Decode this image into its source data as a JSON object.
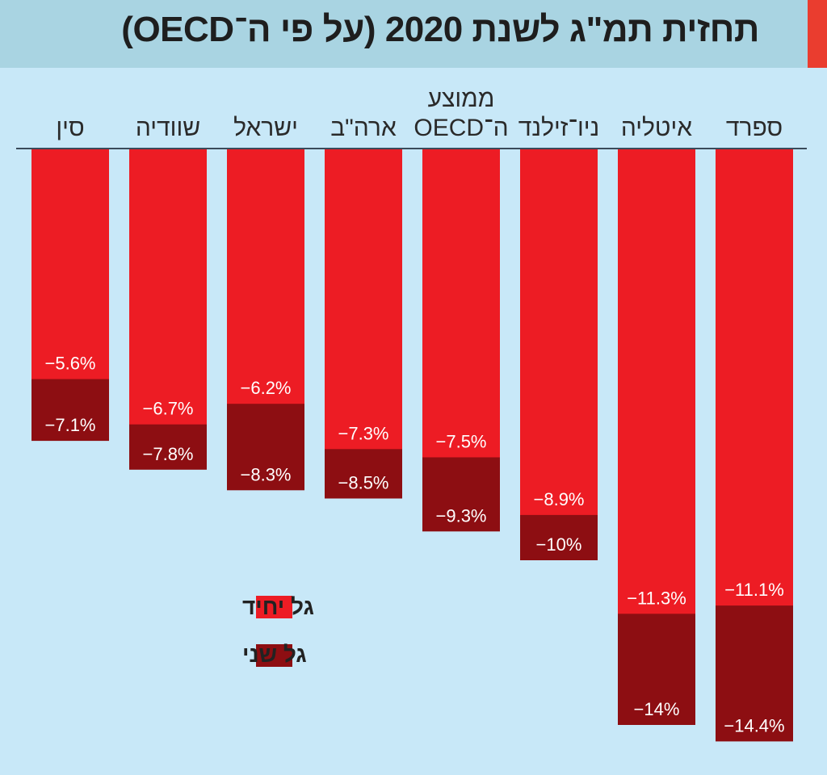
{
  "header": {
    "title": "תחזית תמ\"ג לשנת 2020 (על פי ה־OECD)"
  },
  "colors": {
    "background": "#c8e8f8",
    "header_bg": "#a9d4e2",
    "accent": "#ea3d2f",
    "single_wave": "#ed1c24",
    "second_wave": "#8d0e12",
    "axis": "#3a4a5a"
  },
  "chart_data": {
    "type": "bar",
    "title": "תחזית תמ\"ג לשנת 2020 (על פי ה־OECD)",
    "xlabel": "",
    "ylabel": "",
    "ylim": [
      -15,
      0
    ],
    "grid": false,
    "legend_position": "bottom-left",
    "categories": [
      [
        "סין"
      ],
      [
        "שוודיה"
      ],
      [
        "ישראל"
      ],
      [
        "ארה\"ב"
      ],
      [
        "ממוצע",
        "ה־OECD"
      ],
      [
        "ניו־זילנד"
      ],
      [
        "איטליה"
      ],
      [
        "ספרד"
      ]
    ],
    "series": [
      {
        "name": "גל יחיד",
        "values": [
          -5.6,
          -6.7,
          -6.2,
          -7.3,
          -7.5,
          -8.9,
          -11.3,
          -11.1
        ],
        "labels": [
          "−5.6%",
          "−6.7%",
          "−6.2%",
          "−7.3%",
          "−7.5%",
          "−8.9%",
          "−11.3%",
          "−11.1%"
        ]
      },
      {
        "name": "גל שני",
        "values": [
          -7.1,
          -7.8,
          -8.3,
          -8.5,
          -9.3,
          -10,
          -14,
          -14.4
        ],
        "labels": [
          "−7.1%",
          "−7.8%",
          "−8.3%",
          "−8.5%",
          "−9.3%",
          "−10%",
          "−14%",
          "−14.4%"
        ]
      }
    ]
  }
}
